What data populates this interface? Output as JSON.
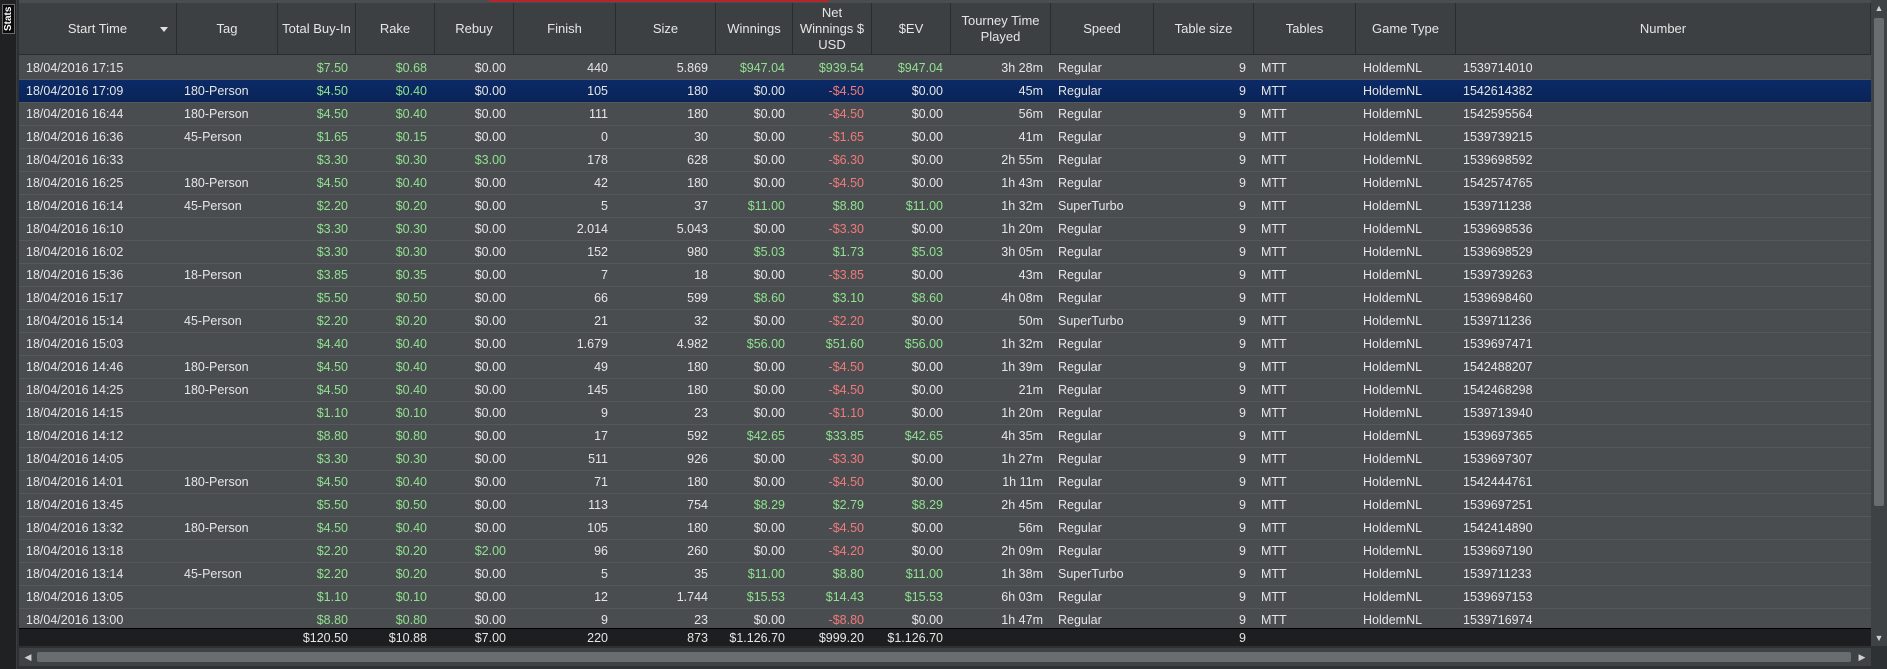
{
  "side_tab": {
    "label": "Stats"
  },
  "columns": [
    {
      "key": "start",
      "label": "Start Time",
      "sorted": true
    },
    {
      "key": "tag",
      "label": "Tag"
    },
    {
      "key": "buyin",
      "label": "Total Buy-In"
    },
    {
      "key": "rake",
      "label": "Rake"
    },
    {
      "key": "rebuy",
      "label": "Rebuy"
    },
    {
      "key": "finish",
      "label": "Finish"
    },
    {
      "key": "size",
      "label": "Size"
    },
    {
      "key": "winnings",
      "label": "Winnings"
    },
    {
      "key": "net",
      "label": "Net Winnings $ USD"
    },
    {
      "key": "ev",
      "label": "$EV"
    },
    {
      "key": "time",
      "label": "Tourney Time Played"
    },
    {
      "key": "speed",
      "label": "Speed"
    },
    {
      "key": "tsize",
      "label": "Table size"
    },
    {
      "key": "tables",
      "label": "Tables"
    },
    {
      "key": "gtype",
      "label": "Game Type"
    },
    {
      "key": "number",
      "label": "Number"
    }
  ],
  "rows": [
    {
      "start": "18/04/2016 17:15",
      "tag": "",
      "buyin": "$7.50",
      "rake": "$0.68",
      "rebuy": "$0.00",
      "finish": "440",
      "size": "5.869",
      "winnings": "$947.04",
      "net": "$939.54",
      "ev": "$947.04",
      "time": "3h 28m",
      "speed": "Regular",
      "tsize": "9",
      "tables": "MTT",
      "gtype": "HoldemNL",
      "number": "1539714010"
    },
    {
      "start": "18/04/2016 17:09",
      "tag": "180-Person",
      "buyin": "$4.50",
      "rake": "$0.40",
      "rebuy": "$0.00",
      "finish": "105",
      "size": "180",
      "winnings": "$0.00",
      "net": "-$4.50",
      "ev": "$0.00",
      "time": "45m",
      "speed": "Regular",
      "tsize": "9",
      "tables": "MTT",
      "gtype": "HoldemNL",
      "number": "1542614382",
      "selected": true
    },
    {
      "start": "18/04/2016 16:44",
      "tag": "180-Person",
      "buyin": "$4.50",
      "rake": "$0.40",
      "rebuy": "$0.00",
      "finish": "111",
      "size": "180",
      "winnings": "$0.00",
      "net": "-$4.50",
      "ev": "$0.00",
      "time": "56m",
      "speed": "Regular",
      "tsize": "9",
      "tables": "MTT",
      "gtype": "HoldemNL",
      "number": "1542595564"
    },
    {
      "start": "18/04/2016 16:36",
      "tag": "45-Person",
      "buyin": "$1.65",
      "rake": "$0.15",
      "rebuy": "$0.00",
      "finish": "0",
      "size": "30",
      "winnings": "$0.00",
      "net": "-$1.65",
      "ev": "$0.00",
      "time": "41m",
      "speed": "Regular",
      "tsize": "9",
      "tables": "MTT",
      "gtype": "HoldemNL",
      "number": "1539739215"
    },
    {
      "start": "18/04/2016 16:33",
      "tag": "",
      "buyin": "$3.30",
      "rake": "$0.30",
      "rebuy": "$3.00",
      "finish": "178",
      "size": "628",
      "winnings": "$0.00",
      "net": "-$6.30",
      "ev": "$0.00",
      "time": "2h 55m",
      "speed": "Regular",
      "tsize": "9",
      "tables": "MTT",
      "gtype": "HoldemNL",
      "number": "1539698592"
    },
    {
      "start": "18/04/2016 16:25",
      "tag": "180-Person",
      "buyin": "$4.50",
      "rake": "$0.40",
      "rebuy": "$0.00",
      "finish": "42",
      "size": "180",
      "winnings": "$0.00",
      "net": "-$4.50",
      "ev": "$0.00",
      "time": "1h 43m",
      "speed": "Regular",
      "tsize": "9",
      "tables": "MTT",
      "gtype": "HoldemNL",
      "number": "1542574765"
    },
    {
      "start": "18/04/2016 16:14",
      "tag": "45-Person",
      "buyin": "$2.20",
      "rake": "$0.20",
      "rebuy": "$0.00",
      "finish": "5",
      "size": "37",
      "winnings": "$11.00",
      "net": "$8.80",
      "ev": "$11.00",
      "time": "1h 32m",
      "speed": "SuperTurbo",
      "tsize": "9",
      "tables": "MTT",
      "gtype": "HoldemNL",
      "number": "1539711238"
    },
    {
      "start": "18/04/2016 16:10",
      "tag": "",
      "buyin": "$3.30",
      "rake": "$0.30",
      "rebuy": "$0.00",
      "finish": "2.014",
      "size": "5.043",
      "winnings": "$0.00",
      "net": "-$3.30",
      "ev": "$0.00",
      "time": "1h 20m",
      "speed": "Regular",
      "tsize": "9",
      "tables": "MTT",
      "gtype": "HoldemNL",
      "number": "1539698536"
    },
    {
      "start": "18/04/2016 16:02",
      "tag": "",
      "buyin": "$3.30",
      "rake": "$0.30",
      "rebuy": "$0.00",
      "finish": "152",
      "size": "980",
      "winnings": "$5.03",
      "net": "$1.73",
      "ev": "$5.03",
      "time": "3h 05m",
      "speed": "Regular",
      "tsize": "9",
      "tables": "MTT",
      "gtype": "HoldemNL",
      "number": "1539698529"
    },
    {
      "start": "18/04/2016 15:36",
      "tag": "18-Person",
      "buyin": "$3.85",
      "rake": "$0.35",
      "rebuy": "$0.00",
      "finish": "7",
      "size": "18",
      "winnings": "$0.00",
      "net": "-$3.85",
      "ev": "$0.00",
      "time": "43m",
      "speed": "Regular",
      "tsize": "9",
      "tables": "MTT",
      "gtype": "HoldemNL",
      "number": "1539739263"
    },
    {
      "start": "18/04/2016 15:17",
      "tag": "",
      "buyin": "$5.50",
      "rake": "$0.50",
      "rebuy": "$0.00",
      "finish": "66",
      "size": "599",
      "winnings": "$8.60",
      "net": "$3.10",
      "ev": "$8.60",
      "time": "4h 08m",
      "speed": "Regular",
      "tsize": "9",
      "tables": "MTT",
      "gtype": "HoldemNL",
      "number": "1539698460"
    },
    {
      "start": "18/04/2016 15:14",
      "tag": "45-Person",
      "buyin": "$2.20",
      "rake": "$0.20",
      "rebuy": "$0.00",
      "finish": "21",
      "size": "32",
      "winnings": "$0.00",
      "net": "-$2.20",
      "ev": "$0.00",
      "time": "50m",
      "speed": "SuperTurbo",
      "tsize": "9",
      "tables": "MTT",
      "gtype": "HoldemNL",
      "number": "1539711236"
    },
    {
      "start": "18/04/2016 15:03",
      "tag": "",
      "buyin": "$4.40",
      "rake": "$0.40",
      "rebuy": "$0.00",
      "finish": "1.679",
      "size": "4.982",
      "winnings": "$56.00",
      "net": "$51.60",
      "ev": "$56.00",
      "time": "1h 32m",
      "speed": "Regular",
      "tsize": "9",
      "tables": "MTT",
      "gtype": "HoldemNL",
      "number": "1539697471"
    },
    {
      "start": "18/04/2016 14:46",
      "tag": "180-Person",
      "buyin": "$4.50",
      "rake": "$0.40",
      "rebuy": "$0.00",
      "finish": "49",
      "size": "180",
      "winnings": "$0.00",
      "net": "-$4.50",
      "ev": "$0.00",
      "time": "1h 39m",
      "speed": "Regular",
      "tsize": "9",
      "tables": "MTT",
      "gtype": "HoldemNL",
      "number": "1542488207"
    },
    {
      "start": "18/04/2016 14:25",
      "tag": "180-Person",
      "buyin": "$4.50",
      "rake": "$0.40",
      "rebuy": "$0.00",
      "finish": "145",
      "size": "180",
      "winnings": "$0.00",
      "net": "-$4.50",
      "ev": "$0.00",
      "time": "21m",
      "speed": "Regular",
      "tsize": "9",
      "tables": "MTT",
      "gtype": "HoldemNL",
      "number": "1542468298"
    },
    {
      "start": "18/04/2016 14:15",
      "tag": "",
      "buyin": "$1.10",
      "rake": "$0.10",
      "rebuy": "$0.00",
      "finish": "9",
      "size": "23",
      "winnings": "$0.00",
      "net": "-$1.10",
      "ev": "$0.00",
      "time": "1h 20m",
      "speed": "Regular",
      "tsize": "9",
      "tables": "MTT",
      "gtype": "HoldemNL",
      "number": "1539713940"
    },
    {
      "start": "18/04/2016 14:12",
      "tag": "",
      "buyin": "$8.80",
      "rake": "$0.80",
      "rebuy": "$0.00",
      "finish": "17",
      "size": "592",
      "winnings": "$42.65",
      "net": "$33.85",
      "ev": "$42.65",
      "time": "4h 35m",
      "speed": "Regular",
      "tsize": "9",
      "tables": "MTT",
      "gtype": "HoldemNL",
      "number": "1539697365"
    },
    {
      "start": "18/04/2016 14:05",
      "tag": "",
      "buyin": "$3.30",
      "rake": "$0.30",
      "rebuy": "$0.00",
      "finish": "511",
      "size": "926",
      "winnings": "$0.00",
      "net": "-$3.30",
      "ev": "$0.00",
      "time": "1h 27m",
      "speed": "Regular",
      "tsize": "9",
      "tables": "MTT",
      "gtype": "HoldemNL",
      "number": "1539697307"
    },
    {
      "start": "18/04/2016 14:01",
      "tag": "180-Person",
      "buyin": "$4.50",
      "rake": "$0.40",
      "rebuy": "$0.00",
      "finish": "71",
      "size": "180",
      "winnings": "$0.00",
      "net": "-$4.50",
      "ev": "$0.00",
      "time": "1h 11m",
      "speed": "Regular",
      "tsize": "9",
      "tables": "MTT",
      "gtype": "HoldemNL",
      "number": "1542444761"
    },
    {
      "start": "18/04/2016 13:45",
      "tag": "",
      "buyin": "$5.50",
      "rake": "$0.50",
      "rebuy": "$0.00",
      "finish": "113",
      "size": "754",
      "winnings": "$8.29",
      "net": "$2.79",
      "ev": "$8.29",
      "time": "2h 45m",
      "speed": "Regular",
      "tsize": "9",
      "tables": "MTT",
      "gtype": "HoldemNL",
      "number": "1539697251"
    },
    {
      "start": "18/04/2016 13:32",
      "tag": "180-Person",
      "buyin": "$4.50",
      "rake": "$0.40",
      "rebuy": "$0.00",
      "finish": "105",
      "size": "180",
      "winnings": "$0.00",
      "net": "-$4.50",
      "ev": "$0.00",
      "time": "56m",
      "speed": "Regular",
      "tsize": "9",
      "tables": "MTT",
      "gtype": "HoldemNL",
      "number": "1542414890"
    },
    {
      "start": "18/04/2016 13:18",
      "tag": "",
      "buyin": "$2.20",
      "rake": "$0.20",
      "rebuy": "$2.00",
      "finish": "96",
      "size": "260",
      "winnings": "$0.00",
      "net": "-$4.20",
      "ev": "$0.00",
      "time": "2h 09m",
      "speed": "Regular",
      "tsize": "9",
      "tables": "MTT",
      "gtype": "HoldemNL",
      "number": "1539697190"
    },
    {
      "start": "18/04/2016 13:14",
      "tag": "45-Person",
      "buyin": "$2.20",
      "rake": "$0.20",
      "rebuy": "$0.00",
      "finish": "5",
      "size": "35",
      "winnings": "$11.00",
      "net": "$8.80",
      "ev": "$11.00",
      "time": "1h 38m",
      "speed": "SuperTurbo",
      "tsize": "9",
      "tables": "MTT",
      "gtype": "HoldemNL",
      "number": "1539711233"
    },
    {
      "start": "18/04/2016 13:05",
      "tag": "",
      "buyin": "$1.10",
      "rake": "$0.10",
      "rebuy": "$0.00",
      "finish": "12",
      "size": "1.744",
      "winnings": "$15.53",
      "net": "$14.43",
      "ev": "$15.53",
      "time": "6h 03m",
      "speed": "Regular",
      "tsize": "9",
      "tables": "MTT",
      "gtype": "HoldemNL",
      "number": "1539697153"
    },
    {
      "start": "18/04/2016 13:00",
      "tag": "",
      "buyin": "$8.80",
      "rake": "$0.80",
      "rebuy": "$0.00",
      "finish": "9",
      "size": "23",
      "winnings": "$0.00",
      "net": "-$8.80",
      "ev": "$0.00",
      "time": "1h 47m",
      "speed": "Regular",
      "tsize": "9",
      "tables": "MTT",
      "gtype": "HoldemNL",
      "number": "1539716974"
    }
  ],
  "totals": {
    "buyin": "$120.50",
    "rake": "$10.88",
    "rebuy": "$7.00",
    "finish": "220",
    "size": "873",
    "winnings": "$1.126.70",
    "net": "$999.20",
    "ev": "$1.126.70",
    "tsize": "9"
  },
  "colors": {
    "positive": "#8fe28f",
    "negative": "#f07a7a",
    "selected_row": "#0b2a66",
    "accent": "#b3262c"
  }
}
